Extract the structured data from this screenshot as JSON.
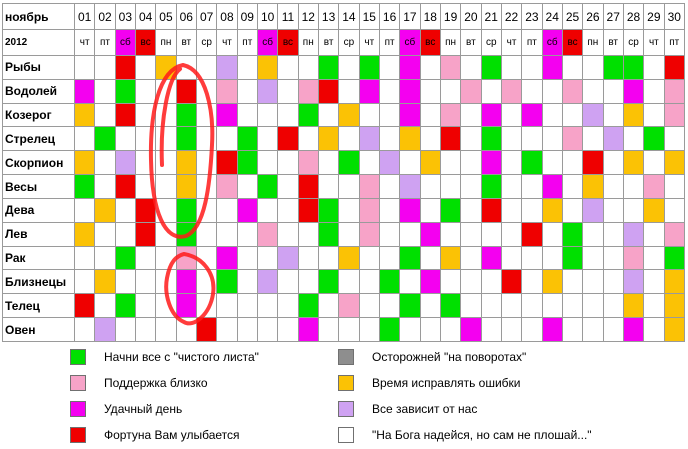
{
  "header": {
    "month": "ноябрь",
    "year": "2012",
    "days": [
      "01",
      "02",
      "03",
      "04",
      "05",
      "06",
      "07",
      "08",
      "09",
      "10",
      "11",
      "12",
      "13",
      "14",
      "15",
      "16",
      "17",
      "18",
      "19",
      "20",
      "21",
      "22",
      "23",
      "24",
      "25",
      "26",
      "27",
      "28",
      "29",
      "30"
    ],
    "weekdays": [
      "чт",
      "пт",
      "сб",
      "вс",
      "пн",
      "вт",
      "ср",
      "чт",
      "пт",
      "сб",
      "вс",
      "пн",
      "вт",
      "ср",
      "чт",
      "пт",
      "сб",
      "вс",
      "пн",
      "вт",
      "ср",
      "чт",
      "пт",
      "сб",
      "вс",
      "пн",
      "вт",
      "ср",
      "чт",
      "пт"
    ]
  },
  "signs": [
    {
      "name": "Рыбы",
      "cells": "wwrwowwvwowwgwgwmwpwgwwmwwggwr"
    },
    {
      "name": "Водолей",
      "cells": "mwgwwrwpwvwprwmwmwwpwpwwpwwmwp"
    },
    {
      "name": "Козерог",
      "cells": "owrwwgwmwwwgwowwmwpwmwmwwvwowp"
    },
    {
      "name": "Стрелец",
      "cells": "wgwwwgwwgwrwowvwowrwgwwwpwvwgw"
    },
    {
      "name": "Скорпион",
      "cells": "owvwwowrgwwpwgwvwowwmwgwwrwowo"
    },
    {
      "name": "Весы",
      "cells": "gwrwwowpwgwrwwpwvwwwgwwmwowwpw"
    },
    {
      "name": "Дева",
      "cells": "wowrwgwwmwwrgwpwmwgwrwwowvwwow"
    },
    {
      "name": "Лев",
      "cells": "owwrwgwwwpwwgwpwwmwwwwrwgwwvwp"
    },
    {
      "name": "Рак",
      "cells": "wwgwwpwmwwvwwowwgwowmwwwgwwpwg"
    },
    {
      "name": "Близнецы",
      "cells": "wowwwmwgwvwwgwwgwmwwwrwowwwvwo"
    },
    {
      "name": "Телец",
      "cells": "rwgwwmwwwwwgwpwwgwgwwwwwwwwowo"
    },
    {
      "name": "Овен",
      "cells": "wvwwwwrwwwwmwwwgwwwmwwwmwwwmwo"
    }
  ],
  "legend": [
    {
      "color": "#00e000",
      "text": "Начни все с \"чистого листа\""
    },
    {
      "color": "#f7a3c8",
      "text": "Поддержка близко"
    },
    {
      "color": "#f400f0",
      "text": "Удачный день"
    },
    {
      "color": "#ef0000",
      "text": "Фортуна Вам улыбается"
    },
    {
      "color": "#8e8e8e",
      "text": "Осторожней \"на поворотах\""
    },
    {
      "color": "#fbc205",
      "text": "Время исправлять ошибки"
    },
    {
      "color": "#cfa2f2",
      "text": "Все зависит от нас"
    },
    {
      "color": "#ffffff",
      "text": "\"На Бога надейся, но сам не плошай...\""
    }
  ]
}
